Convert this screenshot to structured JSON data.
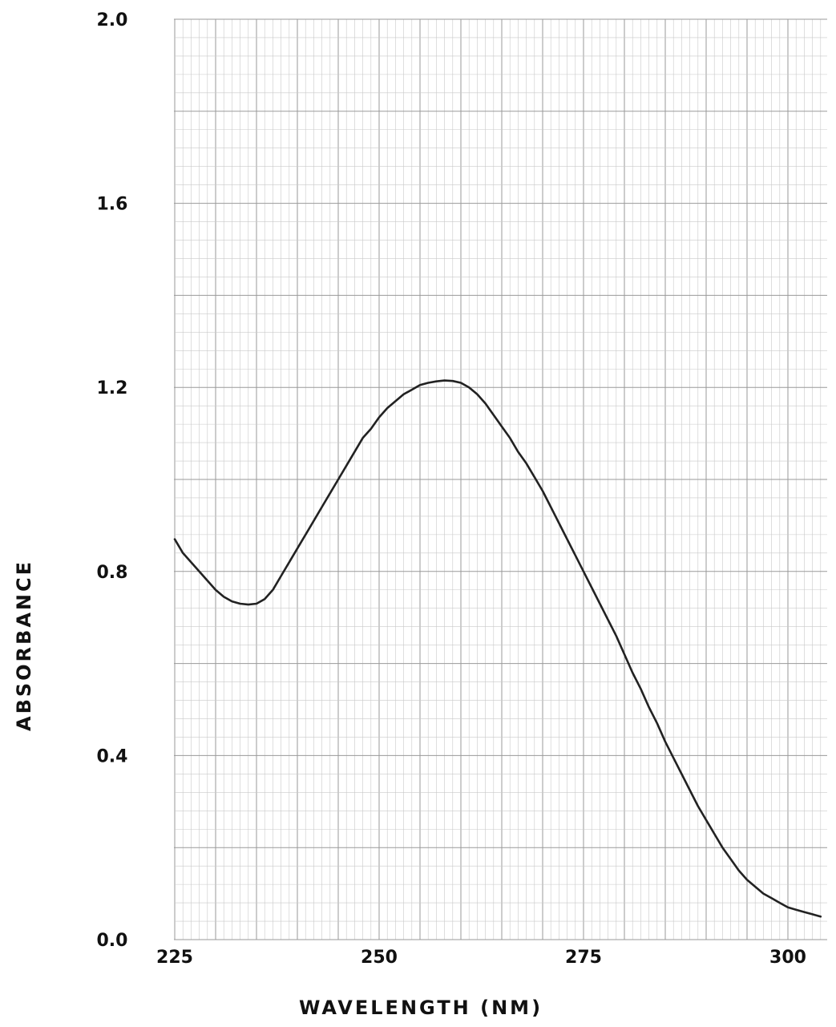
{
  "chart_data": {
    "type": "line",
    "title": "",
    "xlabel": "WAVELENGTH (NM)",
    "ylabel": "ABSORBANCE",
    "xlim": [
      222,
      304
    ],
    "ylim": [
      0.0,
      2.0
    ],
    "x_ticks": [
      225,
      250,
      275,
      300
    ],
    "x_tick_labels": [
      "225",
      "250",
      "275",
      "300"
    ],
    "y_ticks": [
      0.0,
      0.4,
      0.8,
      1.2,
      1.6,
      2.0
    ],
    "y_tick_labels": [
      "0.0",
      "0.4",
      "0.8",
      "1.2",
      "1.6",
      "2.0"
    ],
    "grid": true,
    "line_color": "#222222",
    "series": [
      {
        "x": [
          225,
          226,
          227,
          228,
          229,
          230,
          231,
          232,
          233,
          234,
          235,
          236,
          237,
          238,
          239,
          240,
          241,
          242,
          243,
          244,
          245,
          246,
          247,
          248,
          249,
          250,
          251,
          252,
          253,
          254,
          255,
          256,
          257,
          258,
          259,
          260,
          261,
          262,
          263,
          264,
          265,
          266,
          267,
          268,
          269,
          270,
          271,
          272,
          273,
          274,
          275,
          276,
          277,
          278,
          279,
          280,
          281,
          282,
          283,
          284,
          285,
          286,
          287,
          288,
          289,
          290,
          291,
          292,
          293,
          294,
          295,
          296,
          297,
          298,
          299,
          300,
          301,
          302,
          303,
          304
        ],
        "y": [
          0.87,
          0.84,
          0.82,
          0.8,
          0.78,
          0.76,
          0.745,
          0.735,
          0.73,
          0.728,
          0.73,
          0.74,
          0.76,
          0.79,
          0.82,
          0.85,
          0.88,
          0.91,
          0.94,
          0.97,
          1.0,
          1.03,
          1.06,
          1.09,
          1.11,
          1.135,
          1.155,
          1.17,
          1.185,
          1.195,
          1.205,
          1.21,
          1.213,
          1.215,
          1.214,
          1.21,
          1.2,
          1.185,
          1.165,
          1.14,
          1.115,
          1.09,
          1.06,
          1.035,
          1.005,
          0.975,
          0.94,
          0.905,
          0.87,
          0.835,
          0.8,
          0.765,
          0.73,
          0.695,
          0.66,
          0.62,
          0.58,
          0.545,
          0.505,
          0.47,
          0.43,
          0.395,
          0.36,
          0.325,
          0.29,
          0.26,
          0.23,
          0.2,
          0.175,
          0.15,
          0.13,
          0.115,
          0.1,
          0.09,
          0.08,
          0.07,
          0.065,
          0.06,
          0.055,
          0.05
        ]
      }
    ]
  }
}
